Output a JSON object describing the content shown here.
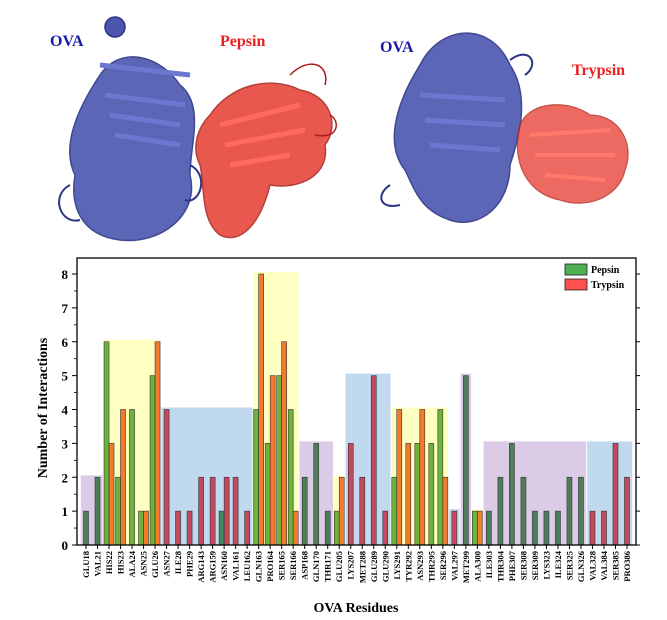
{
  "panels": {
    "left": {
      "ova_label": "OVA",
      "enzyme_label": "Pepsin",
      "ova_color": "#1a1aa8",
      "enzyme_color": "#e8201e"
    },
    "right": {
      "ova_label": "OVA",
      "enzyme_label": "Trypsin",
      "ova_color": "#1a1aa8",
      "enzyme_color": "#e8201e"
    }
  },
  "chart_data": {
    "type": "bar",
    "xlabel": "OVA Residues",
    "ylabel": "Number of Interactions",
    "ylim": [
      0,
      8
    ],
    "yticks": [
      0,
      1,
      2,
      3,
      4,
      5,
      6,
      7,
      8
    ],
    "legend": {
      "position": "top-right",
      "entries": [
        "Pepsin",
        "Trypsin"
      ]
    },
    "categories": [
      "GLU18",
      "VAL21",
      "HIS22",
      "HIS23",
      "ALA24",
      "ASN25",
      "GLU26",
      "ASN27",
      "ILE28",
      "PHE29",
      "ARG143",
      "ARG159",
      "ASN160",
      "VAL161",
      "LEU162",
      "GLN163",
      "PRO164",
      "SER165",
      "SER166",
      "ASP168",
      "GLN170",
      "THR171",
      "GLU205",
      "LYS207",
      "MET288",
      "GLU289",
      "GLU290",
      "LYS291",
      "TYR292",
      "ASN293",
      "THR295",
      "SER296",
      "VAL297",
      "MET299",
      "ALA300",
      "ILE303",
      "THR304",
      "PHE307",
      "SER308",
      "SER309",
      "LYS323",
      "ILE324",
      "SER325",
      "GLN326",
      "VAL328",
      "VAL384",
      "SER385",
      "PRO386"
    ],
    "series": [
      {
        "name": "Pepsin",
        "color": "#4caf50",
        "values": [
          1,
          2,
          6,
          2,
          4,
          1,
          5,
          0,
          0,
          0,
          0,
          0,
          1,
          0,
          0,
          4,
          3,
          5,
          4,
          2,
          3,
          1,
          1,
          0,
          0,
          0,
          0,
          2,
          0,
          3,
          3,
          4,
          0,
          5,
          1,
          1,
          2,
          3,
          2,
          1,
          1,
          1,
          2,
          2,
          0,
          0,
          0,
          0
        ]
      },
      {
        "name": "Trypsin",
        "color": "#ff5050",
        "values": [
          0,
          0,
          3,
          4,
          0,
          1,
          6,
          4,
          1,
          1,
          2,
          2,
          2,
          2,
          1,
          8,
          5,
          6,
          1,
          0,
          0,
          0,
          2,
          3,
          2,
          5,
          1,
          4,
          3,
          4,
          0,
          2,
          1,
          0,
          1,
          0,
          0,
          0,
          0,
          0,
          0,
          0,
          0,
          0,
          1,
          1,
          3,
          2
        ]
      }
    ],
    "highlight_regions": [
      {
        "from": "GLU18",
        "to": "VAL21",
        "color": "#dccbe6"
      },
      {
        "from": "HIS22",
        "to": "GLU26",
        "color": "#ffffc2"
      },
      {
        "from": "ASN27",
        "to": "LEU162",
        "color": "#c0d9ee"
      },
      {
        "from": "GLN163",
        "to": "SER166",
        "color": "#ffffc2"
      },
      {
        "from": "ASP168",
        "to": "THR171",
        "color": "#dccbe6"
      },
      {
        "from": "GLU205",
        "to": "GLU205",
        "color": "#ffffc2"
      },
      {
        "from": "LYS207",
        "to": "GLU290",
        "color": "#c0d9ee"
      },
      {
        "from": "LYS291",
        "to": "SER296",
        "color": "#ffffc2"
      },
      {
        "from": "VAL297",
        "to": "VAL297",
        "color": "#c0d9ee"
      },
      {
        "from": "MET299",
        "to": "MET299",
        "color": "#dccbe6"
      },
      {
        "from": "ALA300",
        "to": "ALA300",
        "color": "#ffffc2"
      },
      {
        "from": "ILE303",
        "to": "GLN326",
        "color": "#dccbe6"
      },
      {
        "from": "VAL328",
        "to": "PRO386",
        "color": "#c0d9ee"
      }
    ]
  }
}
